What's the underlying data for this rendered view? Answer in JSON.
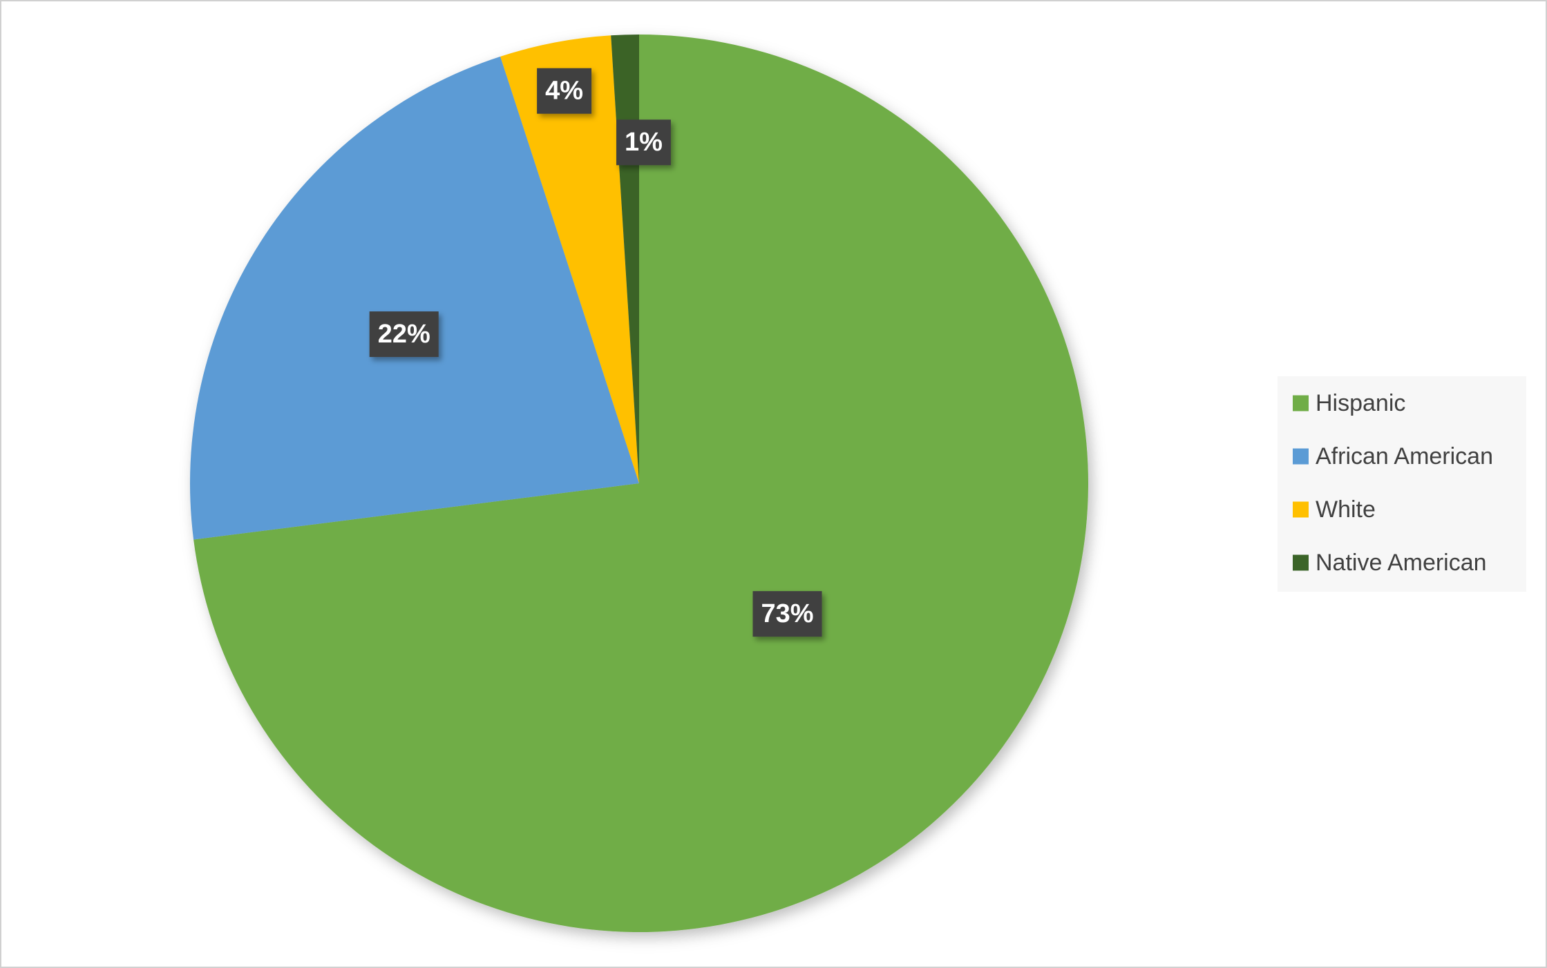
{
  "chart_data": {
    "type": "pie",
    "categories": [
      "Hispanic",
      "African American",
      "White",
      "Native American"
    ],
    "values": [
      73,
      22,
      4,
      1
    ],
    "value_labels": [
      "73%",
      "22%",
      "4%",
      "1%"
    ],
    "colors": [
      "#70ad47",
      "#5b9bd5",
      "#ffc000",
      "#3b6428"
    ],
    "legend": "right"
  }
}
